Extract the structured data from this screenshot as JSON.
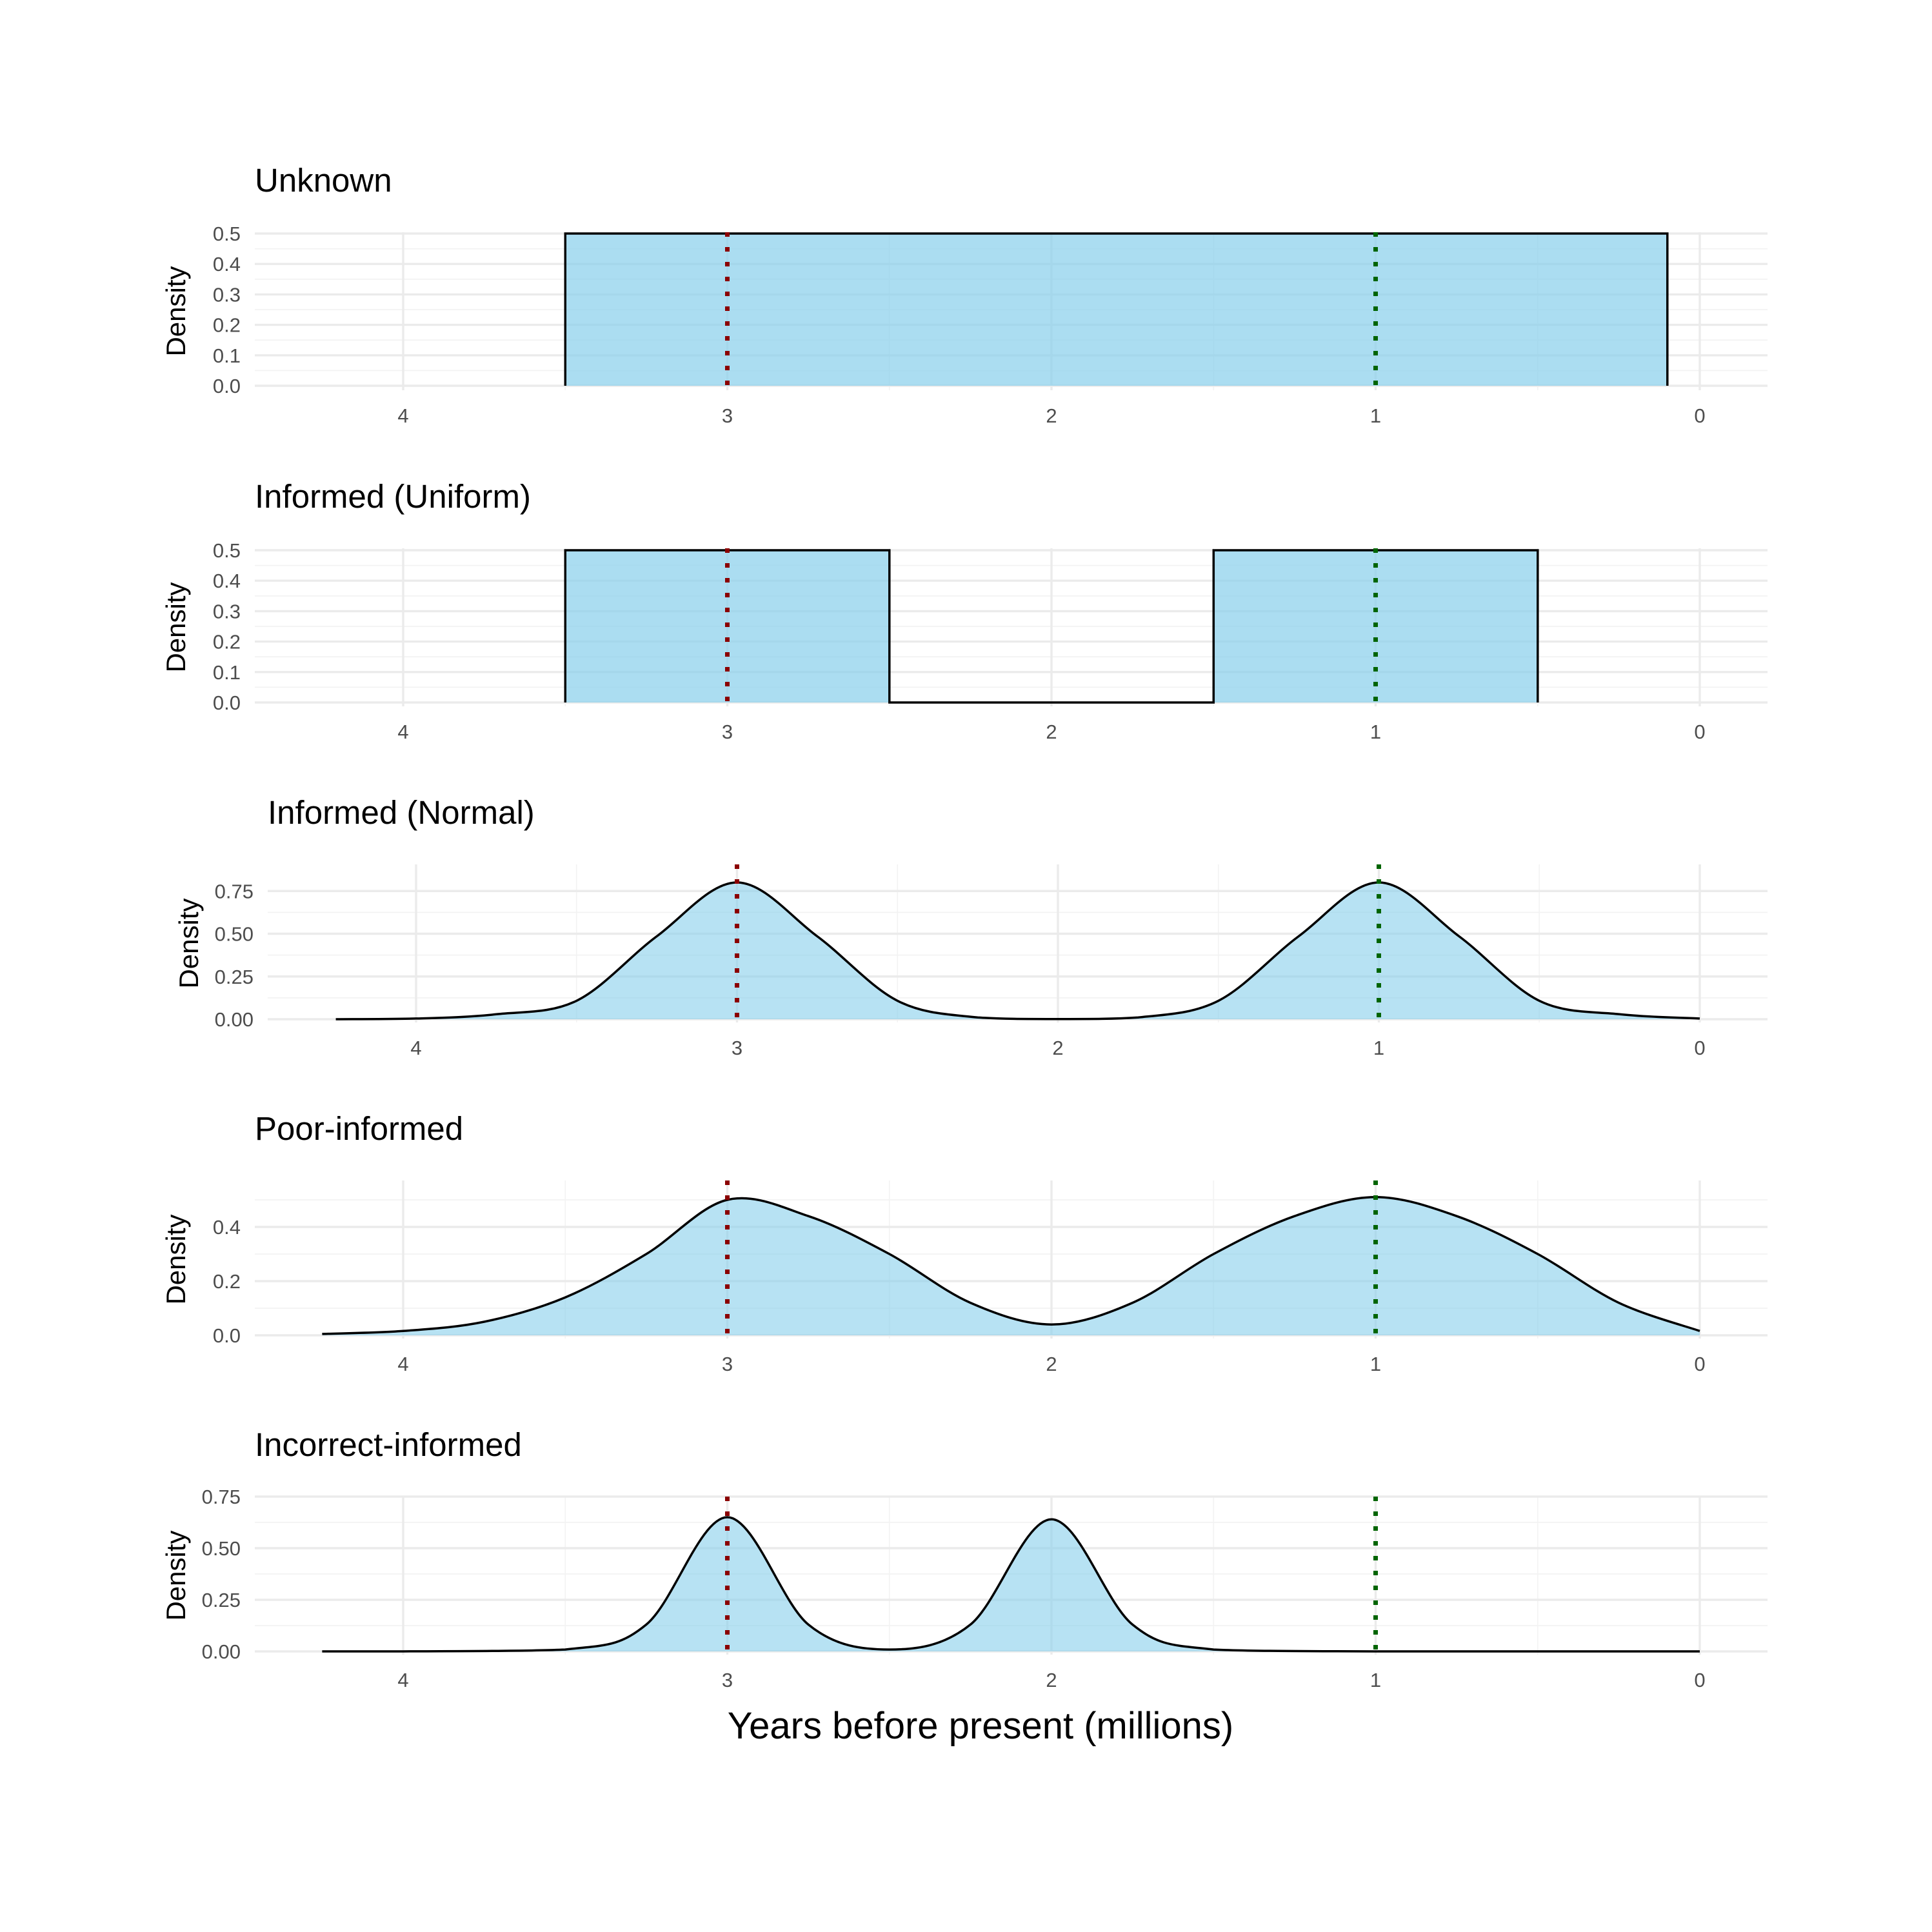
{
  "colors": {
    "fill": "#87ceeb",
    "outline": "#000000",
    "red_line": "#8b0000",
    "green_line": "#006400"
  },
  "chart_data": {
    "xlabel": "Years before present (millions)",
    "panels": [
      {
        "title": "Unknown",
        "ylabel": "Density",
        "type": "area",
        "xticks": [
          "4",
          "3",
          "2",
          "1",
          "0"
        ],
        "yticks": [
          "0.0",
          "0.1",
          "0.2",
          "0.3",
          "0.4",
          "0.5"
        ],
        "ylim": [
          0,
          0.5
        ],
        "x": [
          3.5,
          3.5,
          0.1,
          0.1
        ],
        "y": [
          0,
          0.5,
          0.5,
          0
        ],
        "vlines": [
          3,
          1
        ]
      },
      {
        "title": "Informed (Uniform)",
        "ylabel": "Density",
        "type": "area",
        "xticks": [
          "4",
          "3",
          "2",
          "1",
          "0"
        ],
        "yticks": [
          "0.0",
          "0.1",
          "0.2",
          "0.3",
          "0.4",
          "0.5"
        ],
        "ylim": [
          0,
          0.5
        ],
        "x": [
          3.5,
          3.5,
          2.5,
          2.5,
          1.5,
          1.5,
          0.5,
          0.5
        ],
        "y": [
          0,
          0.5,
          0.5,
          0,
          0,
          0.5,
          0.5,
          0
        ],
        "vlines": [
          3,
          1
        ]
      },
      {
        "title": "Informed (Normal)",
        "ylabel": "Density",
        "type": "area",
        "xticks": [
          "4",
          "3",
          "2",
          "1",
          "0"
        ],
        "yticks": [
          "0.00",
          "0.25",
          "0.50",
          "0.75"
        ],
        "ylim": [
          0,
          0.8
        ],
        "x": [
          4.25,
          4,
          3.75,
          3.5,
          3.25,
          3,
          2.75,
          2.5,
          2.25,
          2,
          1.75,
          1.5,
          1.25,
          1,
          0.75,
          0.5,
          0.25,
          0
        ],
        "y": [
          0,
          0.004,
          0.029,
          0.108,
          0.485,
          0.8,
          0.485,
          0.108,
          0.01,
          0.001,
          0.01,
          0.108,
          0.485,
          0.8,
          0.485,
          0.108,
          0.029,
          0.004
        ],
        "vlines": [
          3,
          1
        ]
      },
      {
        "title": "Poor-informed",
        "ylabel": "Density",
        "type": "area",
        "xticks": [
          "4",
          "3",
          "2",
          "1",
          "0"
        ],
        "yticks": [
          "0.0",
          "0.2",
          "0.4"
        ],
        "ylim": [
          0,
          0.5
        ],
        "x": [
          4.25,
          4,
          3.75,
          3.5,
          3.25,
          3,
          2.75,
          2.5,
          2.25,
          2,
          1.75,
          1.5,
          1.25,
          1,
          0.75,
          0.5,
          0.25,
          0
        ],
        "y": [
          0.005,
          0.016,
          0.05,
          0.14,
          0.3,
          0.5,
          0.44,
          0.3,
          0.12,
          0.04,
          0.12,
          0.3,
          0.44,
          0.51,
          0.44,
          0.3,
          0.12,
          0.016
        ],
        "vlines": [
          3,
          1
        ]
      },
      {
        "title": "Incorrect-informed",
        "ylabel": "Density",
        "type": "area",
        "xticks": [
          "4",
          "3",
          "2",
          "1",
          "0"
        ],
        "yticks": [
          "0.00",
          "0.25",
          "0.50",
          "0.75"
        ],
        "ylim": [
          0,
          0.75
        ],
        "x": [
          4.25,
          4,
          3.5,
          3.25,
          3,
          2.75,
          2.5,
          2.25,
          2,
          1.75,
          1.5,
          1,
          0.5,
          0
        ],
        "y": [
          0,
          0,
          0.009,
          0.13,
          0.65,
          0.13,
          0.009,
          0.13,
          0.64,
          0.13,
          0.009,
          0,
          0,
          0
        ],
        "vlines": [
          3,
          1
        ]
      }
    ]
  }
}
